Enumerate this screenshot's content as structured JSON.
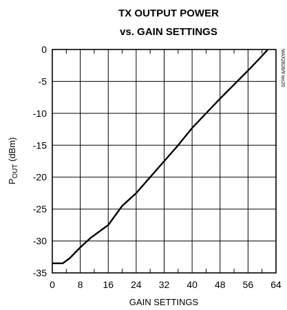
{
  "chart_data": {
    "type": "line",
    "title_line1": "TX OUTPUT POWER",
    "title_line2": "vs. GAIN SETTINGS",
    "xlabel": "GAIN SETTINGS",
    "ylabel_main": "P",
    "ylabel_sub": "OUT",
    "ylabel_unit": " (dBm)",
    "part_id": "MAX2828/9 toc20",
    "xlim": [
      0,
      64
    ],
    "ylim": [
      -35,
      0
    ],
    "xticks": [
      0,
      8,
      16,
      24,
      32,
      40,
      48,
      56,
      64
    ],
    "yticks": [
      0,
      -5,
      -10,
      -15,
      -20,
      -25,
      -30,
      -35
    ],
    "xtick_labels": [
      "0",
      "8",
      "16",
      "24",
      "32",
      "40",
      "48",
      "56",
      "64"
    ],
    "ytick_labels": [
      "0",
      "-5",
      "-10",
      "-15",
      "-20",
      "-25",
      "-30",
      "-35"
    ],
    "x_minor_step": 4,
    "grid": true,
    "series": [
      {
        "color": "#000000",
        "x": [
          0,
          3,
          5,
          8,
          11,
          16,
          20,
          24,
          28,
          32,
          36,
          40,
          44,
          48,
          52,
          56,
          60,
          63
        ],
        "y": [
          -33.5,
          -33.5,
          -32.7,
          -31.0,
          -29.5,
          -27.5,
          -24.5,
          -22.5,
          -20.0,
          -17.5,
          -15.0,
          -12.3,
          -10.0,
          -7.7,
          -5.5,
          -3.3,
          -1.0,
          0.8
        ]
      }
    ]
  }
}
